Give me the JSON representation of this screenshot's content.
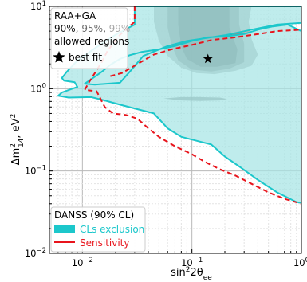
{
  "chart_data": {
    "type": "contour",
    "xlabel_main": "sin",
    "xlabel_sup": "2",
    "xlabel_tail": "2θ",
    "xlabel_sub": "ee",
    "ylabel_main": "Δm",
    "ylabel_sup": "2",
    "ylabel_sub": "14",
    "ylabel_tail": ", eV",
    "ylabel_sup2": "2",
    "xscale": "log",
    "yscale": "log",
    "xlim": [
      0.005,
      1.0
    ],
    "ylim": [
      0.01,
      10
    ],
    "x_ticks": [
      {
        "value": 0.01,
        "base": "10",
        "exp": "−2"
      },
      {
        "value": 0.1,
        "base": "10",
        "exp": "−1"
      },
      {
        "value": 1.0,
        "base": "10",
        "exp": "0"
      }
    ],
    "y_ticks": [
      {
        "value": 0.01,
        "base": "10",
        "exp": "−2"
      },
      {
        "value": 0.1,
        "base": "10",
        "exp": "−1"
      },
      {
        "value": 1.0,
        "base": "10",
        "exp": "0"
      },
      {
        "value": 10,
        "base": "10",
        "exp": "1"
      }
    ],
    "grid": true,
    "colors": {
      "exclusion_fill": "#a6e5e5",
      "exclusion_edge": "#1cc7cb",
      "sensitivity": "#e8141c",
      "allowed_99": "#a6a6a6",
      "allowed_95": "#7f7f7f",
      "allowed_90": "#595959",
      "best_fit": "#000000"
    },
    "allowed_legend": {
      "title": "RAA+GA",
      "levels": [
        {
          "label": "90%",
          "color": "#111111"
        },
        {
          "label": "95%",
          "color": "#6b6b6b"
        },
        {
          "label": "99%",
          "color": "#a8a8a8"
        }
      ],
      "line3": "allowed regions",
      "best_fit_label": "best fit"
    },
    "main_legend": {
      "title": "DANSS (90% CL)",
      "entries": [
        {
          "label": "CLs exclusion",
          "color": "#1cc7cb"
        },
        {
          "label": "Sensitivity",
          "color": "#e8141c"
        }
      ]
    },
    "best_fit": {
      "x": 0.14,
      "y": 2.3
    },
    "exclusion_region": [
      [
        0.03,
        10
      ],
      [
        0.03,
        6
      ],
      [
        0.02,
        4.5
      ],
      [
        0.0135,
        3.2
      ],
      [
        0.009,
        2.2
      ],
      [
        0.0072,
        1.6
      ],
      [
        0.0065,
        1.35
      ],
      [
        0.0068,
        1.25
      ],
      [
        0.0085,
        1.2
      ],
      [
        0.009,
        1.05
      ],
      [
        0.0065,
        0.9
      ],
      [
        0.006,
        0.82
      ],
      [
        0.0075,
        0.78
      ],
      [
        0.012,
        0.79
      ],
      [
        0.016,
        0.72
      ],
      [
        0.022,
        0.64
      ],
      [
        0.045,
        0.5
      ],
      [
        0.06,
        0.33
      ],
      [
        0.08,
        0.26
      ],
      [
        0.15,
        0.21
      ],
      [
        0.2,
        0.15
      ],
      [
        0.28,
        0.11
      ],
      [
        0.4,
        0.078
      ],
      [
        0.6,
        0.055
      ],
      [
        0.9,
        0.042
      ],
      [
        1.0,
        0.041
      ],
      [
        1.0,
        5
      ],
      [
        0.75,
        6
      ],
      [
        0.55,
        5.7
      ],
      [
        0.4,
        5.2
      ],
      [
        0.3,
        4.6
      ],
      [
        0.2,
        4.3
      ],
      [
        0.14,
        4.2
      ],
      [
        0.1,
        3.8
      ],
      [
        0.07,
        3.3
      ],
      [
        0.05,
        3.0
      ],
      [
        0.035,
        2.8
      ],
      [
        0.027,
        2.55
      ],
      [
        0.022,
        2.3
      ],
      [
        0.018,
        1.95
      ],
      [
        0.015,
        1.6
      ],
      [
        0.0125,
        1.35
      ],
      [
        0.011,
        1.2
      ],
      [
        0.0105,
        1.15
      ],
      [
        0.013,
        1.12
      ],
      [
        0.022,
        1.18
      ],
      [
        0.027,
        1.6
      ],
      [
        0.036,
        2.5
      ],
      [
        0.06,
        3.3
      ],
      [
        0.09,
        3.8
      ],
      [
        0.2,
        4.45
      ],
      [
        0.35,
        5.2
      ],
      [
        0.6,
        6.0
      ],
      [
        1.0,
        6.3
      ],
      [
        1.0,
        10
      ]
    ],
    "sensitivity_curve": [
      [
        0.03,
        10
      ],
      [
        0.03,
        6.5
      ],
      [
        0.022,
        4.5
      ],
      [
        0.017,
        2.9
      ],
      [
        0.015,
        2.1
      ],
      [
        0.013,
        1.55
      ],
      [
        0.0115,
        1.2
      ],
      [
        0.0105,
        0.97
      ],
      [
        0.0135,
        0.93
      ],
      [
        0.016,
        0.6
      ],
      [
        0.019,
        0.5
      ],
      [
        0.025,
        0.48
      ],
      [
        0.032,
        0.43
      ],
      [
        0.04,
        0.33
      ],
      [
        0.05,
        0.26
      ],
      [
        0.07,
        0.2
      ],
      [
        0.1,
        0.16
      ],
      [
        0.13,
        0.13
      ],
      [
        0.18,
        0.105
      ],
      [
        0.25,
        0.088
      ],
      [
        0.35,
        0.07
      ],
      [
        0.5,
        0.055
      ],
      [
        0.7,
        0.046
      ],
      [
        1.0,
        0.04
      ]
    ],
    "sensitivity_upper": [
      [
        0.018,
        1.42
      ],
      [
        0.023,
        1.55
      ],
      [
        0.032,
        2.0
      ],
      [
        0.045,
        2.6
      ],
      [
        0.065,
        3.0
      ],
      [
        0.1,
        3.4
      ],
      [
        0.15,
        3.9
      ],
      [
        0.25,
        4.2
      ],
      [
        0.4,
        4.6
      ],
      [
        0.6,
        5.0
      ],
      [
        1.0,
        5.2
      ]
    ],
    "allowed_99": [
      [
        0.045,
        10
      ],
      [
        0.045,
        6.5
      ],
      [
        0.05,
        3.8
      ],
      [
        0.06,
        2.5
      ],
      [
        0.08,
        1.8
      ],
      [
        0.11,
        1.55
      ],
      [
        0.16,
        1.5
      ],
      [
        0.25,
        1.65
      ],
      [
        0.35,
        1.9
      ],
      [
        0.4,
        2.6
      ],
      [
        0.35,
        4.0
      ],
      [
        0.33,
        6.5
      ],
      [
        0.35,
        10
      ]
    ],
    "allowed_95": [
      [
        0.06,
        10
      ],
      [
        0.06,
        5.5
      ],
      [
        0.065,
        3.4
      ],
      [
        0.075,
        2.2
      ],
      [
        0.1,
        1.7
      ],
      [
        0.15,
        1.62
      ],
      [
        0.22,
        1.75
      ],
      [
        0.3,
        2.1
      ],
      [
        0.3,
        3.5
      ],
      [
        0.27,
        6
      ],
      [
        0.27,
        10
      ]
    ],
    "allowed_90": [
      [
        0.075,
        10
      ],
      [
        0.075,
        6
      ],
      [
        0.08,
        3.2
      ],
      [
        0.09,
        2.3
      ],
      [
        0.12,
        1.85
      ],
      [
        0.17,
        1.85
      ],
      [
        0.25,
        2.05
      ],
      [
        0.26,
        3.0
      ],
      [
        0.22,
        5.5
      ],
      [
        0.22,
        10
      ]
    ],
    "allowed_island": [
      [
        0.055,
        0.76
      ],
      [
        0.08,
        0.72
      ],
      [
        0.12,
        0.71
      ],
      [
        0.18,
        0.72
      ],
      [
        0.21,
        0.75
      ],
      [
        0.18,
        0.78
      ],
      [
        0.12,
        0.79
      ],
      [
        0.08,
        0.79
      ]
    ]
  }
}
